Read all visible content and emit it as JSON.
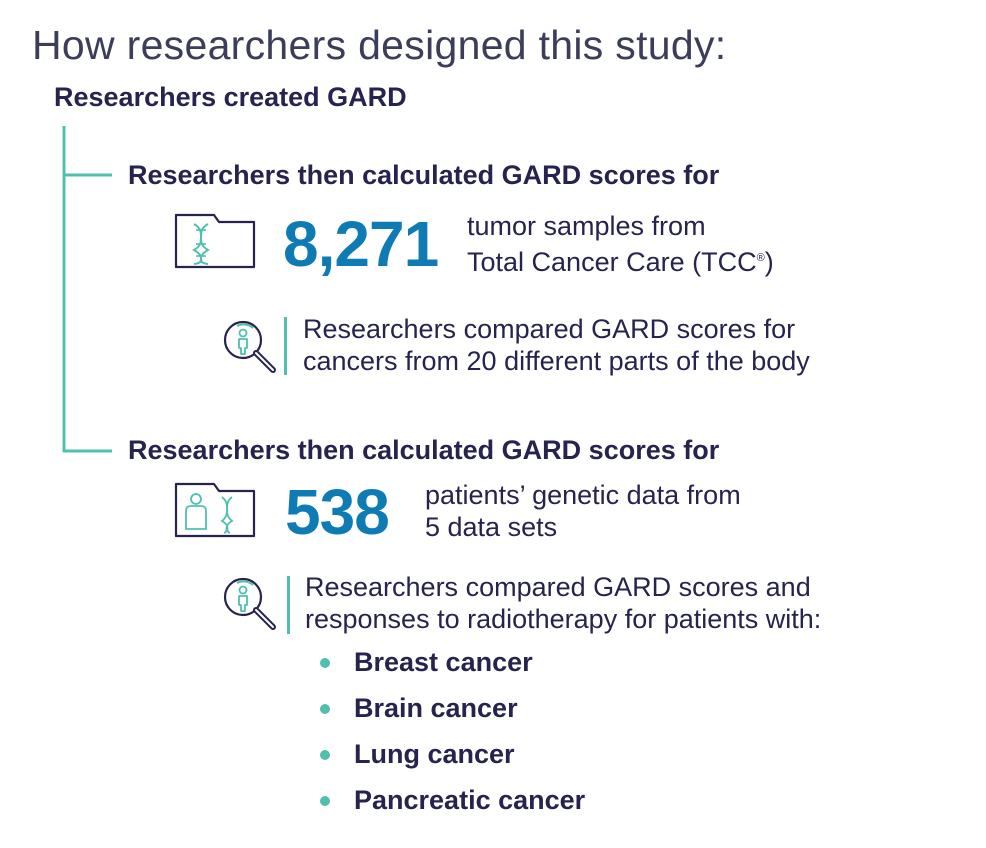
{
  "title": "How researchers designed this study:",
  "root_step": "Researchers created GARD",
  "branch1": {
    "heading": "Researchers then calculated GARD scores for",
    "number": "8,271",
    "desc_line1": "tumor samples from",
    "desc_line2": "Total Cancer Care (TCC",
    "desc_mark": "®",
    "desc_end": ")",
    "note_line1": "Researchers compared GARD scores for",
    "note_line2": "cancers from 20 different parts of the body"
  },
  "branch2": {
    "heading": "Researchers then calculated GARD scores for",
    "number": "538",
    "desc_line1": "patients’ genetic data from",
    "desc_line2": "5 data sets",
    "note_line1": "Researchers compared GARD scores and",
    "note_line2": "responses to radiotherapy for patients with:",
    "cancers": [
      "Breast cancer",
      "Brain cancer",
      "Lung cancer",
      "Pancreatic cancer"
    ]
  },
  "icons": {
    "tumor_folder": "folder-dna-icon",
    "patient_folder": "folder-person-dna-icon",
    "magnifier": "magnifier-person-icon"
  },
  "colors": {
    "accent_teal": "#4fc0ae",
    "number_blue": "#0f7bb5",
    "text_navy": "#26234f"
  }
}
